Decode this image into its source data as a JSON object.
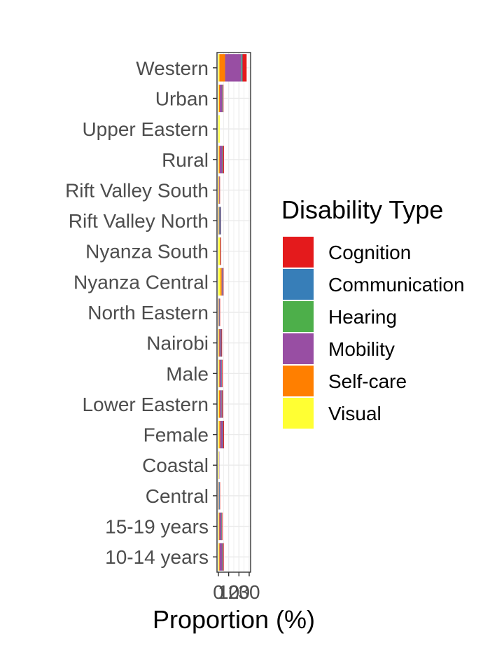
{
  "chart_data": {
    "type": "bar",
    "orientation": "horizontal",
    "stacked": true,
    "title": "",
    "xlabel": "Proportion (%)",
    "ylabel": "",
    "xlim": [
      0,
      30
    ],
    "x_ticks": [
      "0",
      "10",
      "20",
      "30"
    ],
    "grid": true,
    "legend_title": "Disability Type",
    "legend_position": "right",
    "categories": [
      "Western",
      "Urban",
      "Upper Eastern",
      "Rural",
      "Rift Valley South",
      "Rift Valley North",
      "Nyanza South",
      "Nyanza Central",
      "North Eastern",
      "Nairobi",
      "Male",
      "Lower Eastern",
      "Female",
      "Coastal",
      "Central",
      "15-19 years",
      "10-14 years"
    ],
    "series": [
      {
        "name": "Visual",
        "color": "#FFFF33",
        "values": [
          1.0,
          0.6,
          1.3,
          0.5,
          0.3,
          0.3,
          1.5,
          2.0,
          0.2,
          0.4,
          0.6,
          0.7,
          0.9,
          0.6,
          0.2,
          0.5,
          0.6
        ]
      },
      {
        "name": "Self-care",
        "color": "#FF7F00",
        "values": [
          5.5,
          0.8,
          0.0,
          0.8,
          0.5,
          0.2,
          0.5,
          1.2,
          0.2,
          0.6,
          0.6,
          0.8,
          0.9,
          0.0,
          0.1,
          0.5,
          0.6
        ]
      },
      {
        "name": "Mobility",
        "color": "#984EA3",
        "values": [
          15.5,
          2.2,
          0.0,
          2.5,
          0.3,
          0.6,
          0.3,
          0.8,
          0.6,
          1.5,
          1.8,
          1.7,
          2.4,
          0.2,
          0.3,
          1.8,
          2.6
        ]
      },
      {
        "name": "Hearing",
        "color": "#4DAF4A",
        "values": [
          0.6,
          0.3,
          0.0,
          0.3,
          0.0,
          0.2,
          0.0,
          0.2,
          0.1,
          0.2,
          0.2,
          0.2,
          0.2,
          0.0,
          0.0,
          0.2,
          0.3
        ]
      },
      {
        "name": "Communication",
        "color": "#377EB8",
        "values": [
          0.9,
          0.4,
          0.0,
          0.4,
          0.1,
          1.0,
          0.1,
          0.3,
          0.2,
          0.3,
          0.3,
          0.3,
          0.4,
          0.0,
          0.7,
          0.3,
          0.4
        ]
      },
      {
        "name": "Cognition",
        "color": "#E41A1C",
        "values": [
          4.0,
          0.6,
          0.0,
          0.9,
          0.3,
          0.2,
          0.1,
          0.5,
          0.2,
          0.6,
          0.6,
          0.8,
          0.7,
          0.0,
          0.1,
          0.6,
          0.7
        ]
      }
    ],
    "legend_order": [
      "Cognition",
      "Communication",
      "Hearing",
      "Mobility",
      "Self-care",
      "Visual"
    ]
  }
}
